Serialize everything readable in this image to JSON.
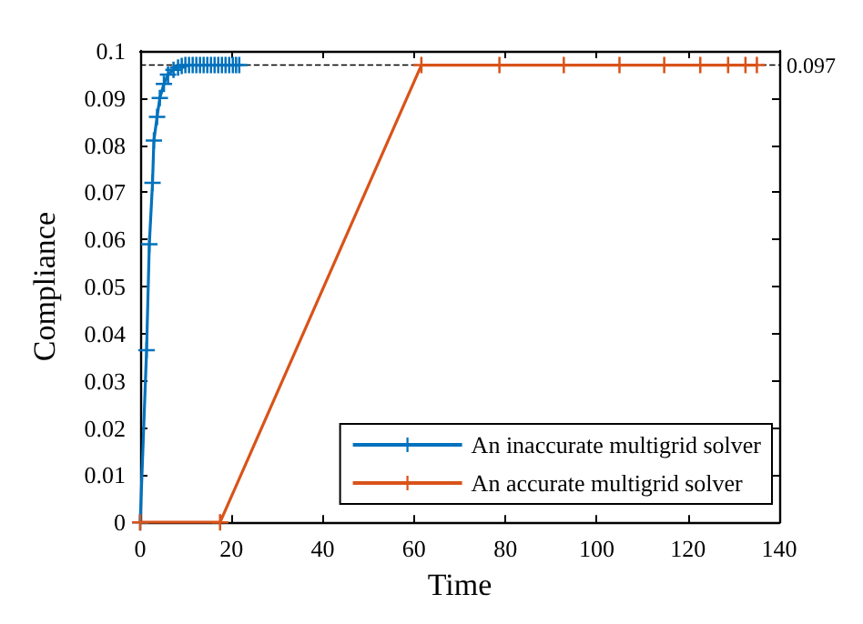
{
  "chart_data": {
    "type": "line",
    "xlabel": "Time",
    "ylabel": "Compliance",
    "xlim": [
      0,
      140
    ],
    "xticks": [
      0,
      20,
      40,
      60,
      80,
      100,
      120,
      140
    ],
    "ylim": [
      0,
      0.1
    ],
    "yticks": [
      0,
      0.01,
      0.02,
      0.03,
      0.04,
      0.05,
      0.06,
      0.07,
      0.08,
      0.09,
      0.1
    ],
    "series": [
      {
        "name": "An inaccurate multigrid solver",
        "color": "#0072bd",
        "x": [
          0,
          1.4,
          2.0,
          2.7,
          3.0,
          3.7,
          4.3,
          5.2,
          6.1,
          7.3,
          8.3,
          9.1,
          9.9,
          10.7,
          11.5,
          12.3,
          13.1,
          13.9,
          14.7,
          15.5,
          16.3,
          17.1,
          17.9,
          18.7,
          19.5,
          20.3,
          21.0,
          21.7
        ],
        "values": [
          0,
          0.0365,
          0.059,
          0.072,
          0.081,
          0.086,
          0.09,
          0.093,
          0.095,
          0.096,
          0.0965,
          0.0968,
          0.097,
          0.097,
          0.097,
          0.097,
          0.097,
          0.097,
          0.097,
          0.097,
          0.097,
          0.097,
          0.097,
          0.097,
          0.097,
          0.097,
          0.097,
          0.097
        ]
      },
      {
        "name": "An accurate multigrid solver",
        "color": "#d95319",
        "x": [
          0,
          17.5,
          61.6,
          78.7,
          92.8,
          105,
          114.8,
          122.7,
          128.8,
          132.6,
          135.1
        ],
        "values": [
          0,
          0,
          0.097,
          0.097,
          0.097,
          0.097,
          0.097,
          0.097,
          0.097,
          0.097,
          0.097
        ]
      }
    ],
    "ref_lines": [
      {
        "axis": "y",
        "value": 0.097,
        "label": "0.097",
        "color": "#000000",
        "line_style": "dashed"
      }
    ],
    "marker": "cross",
    "line_style": "solid",
    "grid": false,
    "legend": "bottom right"
  }
}
